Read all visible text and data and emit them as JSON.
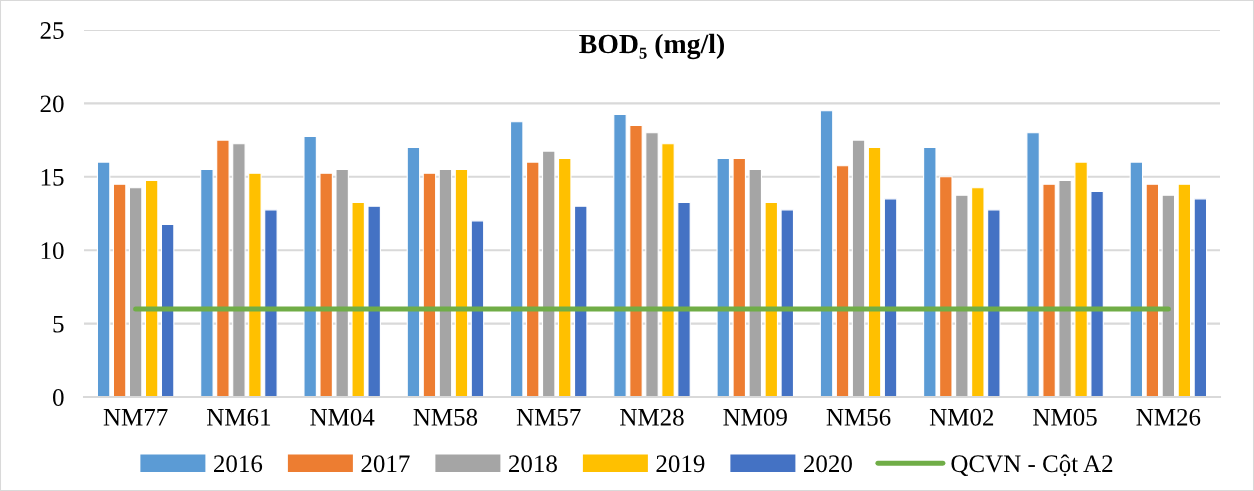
{
  "chart_data": {
    "type": "bar",
    "title": "BOD₅ (mg/l)",
    "categories": [
      "NM77",
      "NM61",
      "NM04",
      "NM58",
      "NM57",
      "NM28",
      "NM09",
      "NM56",
      "NM02",
      "NM05",
      "NM26"
    ],
    "series": [
      {
        "name": "2016",
        "color": "#5b9bd5",
        "values": [
          16,
          15.5,
          17.75,
          17,
          18.75,
          19.25,
          16.25,
          19.5,
          17,
          18,
          16
        ]
      },
      {
        "name": "2017",
        "color": "#ed7d31",
        "values": [
          14.5,
          17.5,
          15.25,
          15.25,
          16,
          18.5,
          16.25,
          15.75,
          15,
          14.5,
          14.5
        ]
      },
      {
        "name": "2018",
        "color": "#a5a5a5",
        "values": [
          14.25,
          17.25,
          15.5,
          15.5,
          16.75,
          18,
          15.5,
          17.5,
          13.75,
          14.75,
          13.75
        ]
      },
      {
        "name": "2019",
        "color": "#ffc000",
        "values": [
          14.75,
          15.25,
          13.25,
          15.5,
          16.25,
          17.25,
          13.25,
          17,
          14.25,
          16,
          14.5
        ]
      },
      {
        "name": "2020",
        "color": "#4472c4",
        "values": [
          11.75,
          12.75,
          13,
          12,
          13,
          13.25,
          12.75,
          13.5,
          12.75,
          14,
          13.5
        ]
      },
      {
        "name": "QCVN - Cột A2",
        "type": "line",
        "color": "#70ad47",
        "values": [
          6,
          6,
          6,
          6,
          6,
          6,
          6,
          6,
          6,
          6,
          6
        ]
      }
    ],
    "ylim": [
      0,
      25
    ],
    "yticks": [
      0,
      5,
      10,
      15,
      20,
      25
    ],
    "grid": "y",
    "legend": "bottom"
  }
}
